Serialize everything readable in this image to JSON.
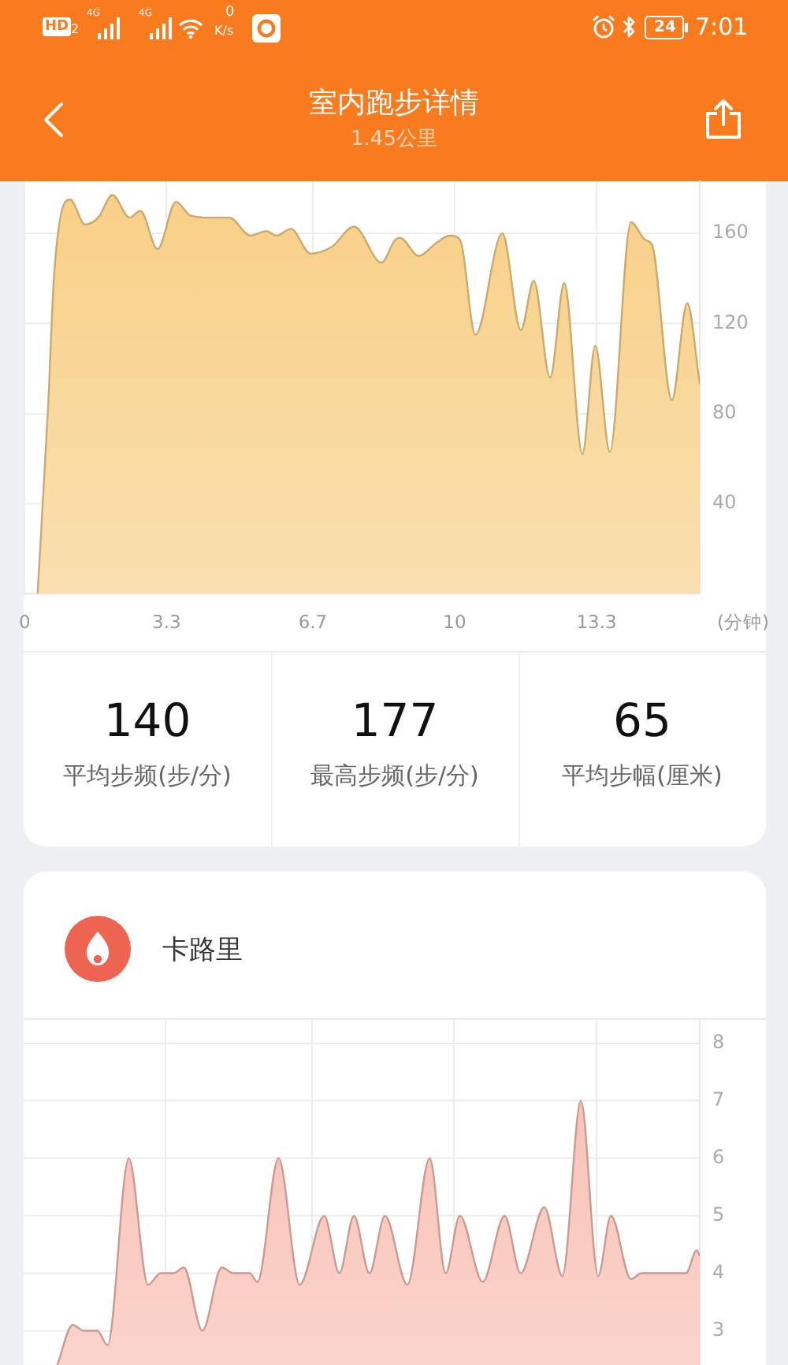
{
  "chart_data": [
    {
      "type": "area",
      "title": "室内跑步详情",
      "subtitle": "1.45公里",
      "xlabel": "(分钟)",
      "annotations": [
        "HD",
        "2",
        "4G",
        "4G",
        "0",
        "K/s",
        "24",
        "7:01"
      ],
      "x": [
        0.3,
        0.55,
        0.67,
        0.82,
        1.06,
        1.4,
        1.71,
        2.04,
        2.44,
        2.69,
        3.09,
        3.52,
        3.85,
        4.33,
        4.76,
        5.25,
        5.62,
        5.86,
        6.19,
        6.65,
        7.14,
        7.66,
        8.3,
        8.61,
        8.73,
        9.16,
        9.59,
        9.89,
        10.13,
        10.48,
        11.11,
        11.54,
        11.84,
        12.22,
        12.55,
        12.97,
        13.27,
        13.61,
        14.1,
        14.44,
        14.59,
        15.05,
        15.41,
        15.7
      ],
      "values": [
        0,
        85,
        137,
        166,
        175,
        164,
        167,
        177,
        167,
        170,
        153,
        174,
        168,
        167,
        167,
        159,
        161,
        159,
        162,
        151,
        154,
        163,
        147,
        157,
        158,
        150,
        156,
        159,
        157,
        115,
        160,
        117,
        139,
        96,
        138,
        62,
        110,
        63,
        165,
        157,
        155,
        86,
        129,
        93
      ],
      "color": "#f8cf86",
      "xlim": [
        0,
        15.7
      ],
      "ylim": [
        0,
        183
      ],
      "xticks": [
        0,
        3.3,
        6.7,
        10,
        13.3
      ],
      "yticks": [
        40,
        80,
        120,
        160
      ],
      "grid": true
    },
    {
      "type": "other",
      "annotations": [
        "140",
        "平均步频(步/分)",
        "177",
        "最高步频(步/分)",
        "65",
        "平均步幅(厘米)"
      ]
    },
    {
      "type": "area",
      "title": "卡路里",
      "x": [
        0.78,
        1.14,
        1.4,
        1.71,
        1.95,
        2.44,
        2.89,
        3.18,
        3.48,
        3.72,
        4.15,
        4.6,
        4.88,
        5.25,
        5.43,
        5.92,
        6.41,
        6.98,
        7.33,
        7.67,
        8.03,
        8.39,
        8.91,
        9.43,
        9.8,
        10.13,
        10.66,
        11.17,
        11.54,
        12.09,
        12.51,
        12.94,
        13.34,
        13.64,
        14.1,
        14.35,
        15.38,
        15.63,
        15.7
      ],
      "values": [
        2.4,
        3.1,
        3.0,
        3.0,
        2.75,
        6,
        3.8,
        4,
        4,
        4.1,
        3,
        4.1,
        4,
        4,
        3.85,
        6,
        3.8,
        5,
        4,
        5,
        4,
        5,
        3.8,
        6,
        4,
        5,
        3.85,
        5,
        4,
        5.15,
        3.95,
        7,
        3.95,
        5,
        3.9,
        4,
        4,
        4.4,
        4.3
      ],
      "color": "#f8bdb1",
      "xlim": [
        0,
        15.7
      ],
      "ylim": [
        2.4,
        8.4
      ],
      "xticks": [
        {
          "value": 3.3,
          "label": null
        },
        {
          "value": 6.7,
          "label": null
        },
        {
          "value": 10,
          "label": null
        },
        {
          "value": 13.3,
          "label": null
        }
      ],
      "yticks": [
        3,
        4,
        5,
        6,
        7,
        8
      ],
      "grid": true,
      "tick_labels": "y"
    }
  ]
}
